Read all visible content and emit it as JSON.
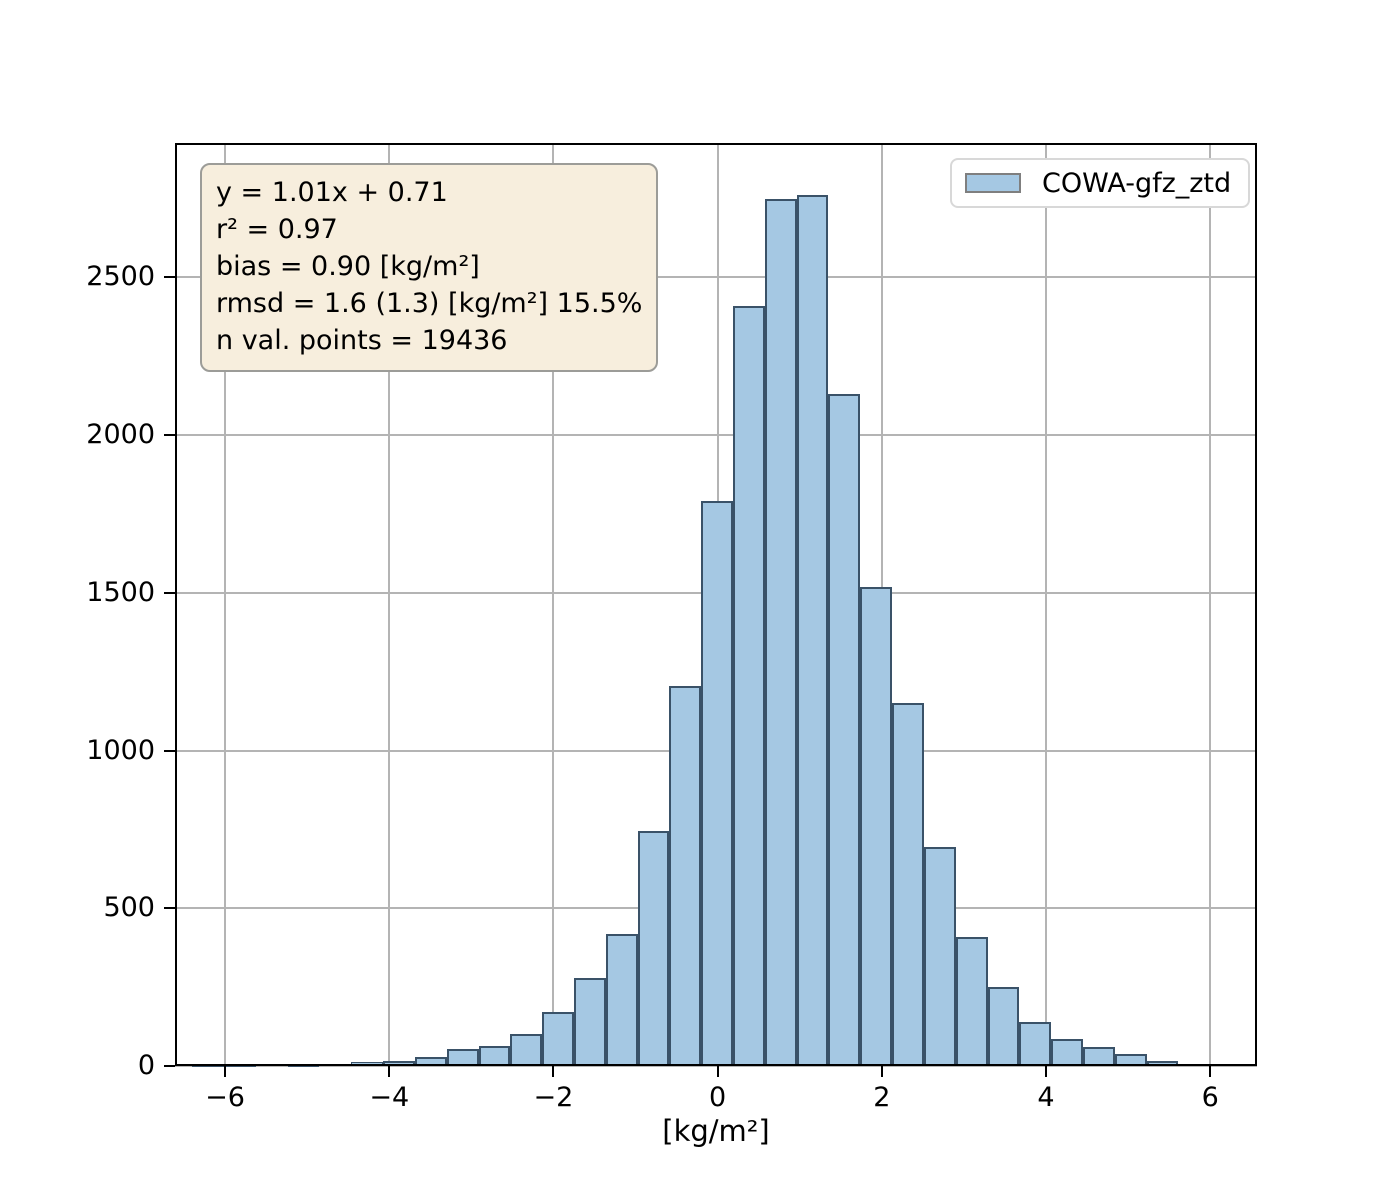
{
  "chart_data": {
    "type": "bar",
    "title": "",
    "xlabel": "[kg/m²]",
    "ylabel": "",
    "legend_label": "COWA-gfz_ztd",
    "legend_position": "upper right",
    "grid": true,
    "xlim": [
      -6.61,
      6.57
    ],
    "ylim": [
      0,
      2926
    ],
    "xtick_values": [
      -6,
      -4,
      -2,
      0,
      2,
      4,
      6
    ],
    "xtick_labels": [
      "−6",
      "−4",
      "−2",
      "0",
      "2",
      "4",
      "6"
    ],
    "ytick_values": [
      0,
      500,
      1000,
      1500,
      2000,
      2500
    ],
    "ytick_labels": [
      "0",
      "500",
      "1000",
      "1500",
      "2000",
      "2500"
    ],
    "bin_edges": [
      -6.4,
      -6.0125,
      -5.625,
      -5.2375,
      -4.85,
      -4.4625,
      -4.075,
      -3.6875,
      -3.3,
      -2.9125,
      -2.525,
      -2.1375,
      -1.75,
      -1.3625,
      -0.975,
      -0.5875,
      -0.2,
      0.1875,
      0.575,
      0.9625,
      1.35,
      1.7375,
      2.125,
      2.5125,
      2.9,
      3.2875,
      3.675,
      4.0625,
      4.45,
      4.8375,
      5.225,
      5.6125,
      6.0
    ],
    "values": [
      1,
      2,
      7,
      3,
      6,
      12,
      16,
      30,
      53,
      63,
      100,
      172,
      278,
      420,
      745,
      1205,
      1790,
      2410,
      2750,
      2760,
      2130,
      1520,
      1150,
      695,
      410,
      250,
      138,
      85,
      60,
      38,
      16,
      7
    ]
  },
  "stats_box": {
    "lines": [
      "y = 1.01x + 0.71",
      "r² = 0.97",
      "bias = 0.90 [kg/m²]",
      "rmsd = 1.6 (1.3) [kg/m²] 15.5%",
      "n val. points = 19436"
    ]
  },
  "colors": {
    "bar_fill": "#a5c8e3",
    "bar_edge": "#3a5268",
    "grid": "#b4b4b4",
    "spine": "#000000",
    "stats_bg": "#f7eedd",
    "stats_border": "#9c9c98",
    "legend_border": "#d8d8d8",
    "legend_patch_edge": "#7f7f7f",
    "text": "#000000"
  }
}
